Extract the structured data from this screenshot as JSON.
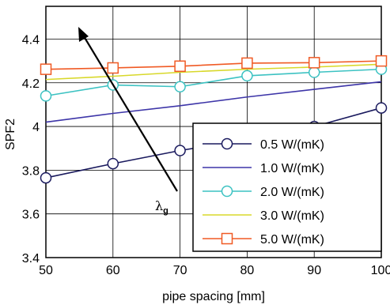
{
  "chart_data": {
    "type": "line",
    "title": "",
    "xlabel": "pipe spacing [mm]",
    "ylabel": "SPF2",
    "xlim": [
      50,
      100
    ],
    "ylim": [
      3.4,
      4.55
    ],
    "x_ticks": [
      "50",
      "60",
      "70",
      "80",
      "90",
      "100"
    ],
    "y_ticks": [
      "3.4",
      "3.6",
      "3.8",
      "4",
      "4.2",
      "4.4"
    ],
    "grid": true,
    "legend_position": "bottom-right",
    "x": [
      50,
      60,
      70,
      80,
      90,
      100
    ],
    "series": [
      {
        "name": "0.5 W/(mK)",
        "color": "#1a1a5e",
        "marker": "circle",
        "values": [
          3.765,
          3.83,
          3.89,
          3.94,
          4.0,
          4.085
        ]
      },
      {
        "name": "1.0 W/(mK)",
        "color": "#3d35a8",
        "marker": "none",
        "values": [
          4.02,
          4.06,
          4.095,
          4.135,
          4.17,
          4.205
        ]
      },
      {
        "name": "2.0 W/(mK)",
        "color": "#3cc2c2",
        "marker": "circle",
        "values": [
          4.14,
          4.19,
          4.182,
          4.232,
          4.248,
          4.262
        ]
      },
      {
        "name": "3.0 W/(mK)",
        "color": "#d8d82a",
        "marker": "none",
        "values": [
          4.215,
          4.23,
          4.248,
          4.262,
          4.272,
          4.285
        ]
      },
      {
        "name": "5.0 W/(mK)",
        "color": "#f05a24",
        "marker": "square",
        "values": [
          4.262,
          4.268,
          4.276,
          4.29,
          4.292,
          4.3
        ]
      }
    ],
    "annotations": [
      {
        "text": "λ",
        "subscript": "g"
      }
    ]
  }
}
